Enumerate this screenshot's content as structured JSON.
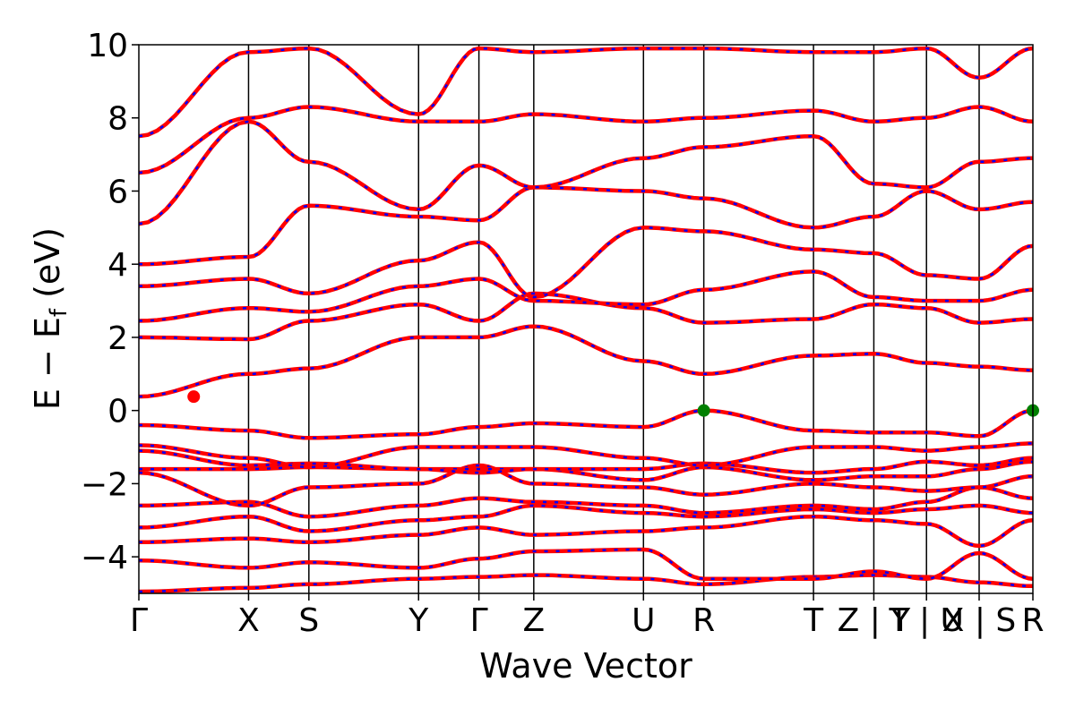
{
  "chart_data": {
    "type": "line",
    "xlabel": "Wave Vector",
    "ylabel": "E − E",
    "ylabel_subscript": "f",
    "ylabel_unit": " (eV)",
    "ylim": [
      -5,
      10
    ],
    "yticks": [
      -4,
      -2,
      0,
      2,
      4,
      6,
      8,
      10
    ],
    "ytick_labels": [
      "−4",
      "−2",
      "0",
      "2",
      "4",
      "6",
      "8",
      "10"
    ],
    "kpath": {
      "positions": [
        0,
        1,
        1.55,
        2.55,
        3.1,
        3.6,
        4.6,
        5.15,
        6.15,
        6.7,
        7.18,
        7.66,
        8.15
      ],
      "labels": [
        "Γ",
        "X",
        "S",
        "Y",
        "Γ",
        "Z",
        "U",
        "R",
        "T",
        "Z | Y",
        "T | U",
        "X | S",
        "R"
      ],
      "xlim": [
        0,
        8.15
      ]
    },
    "line_colors": {
      "band": "#ff0000",
      "overlay": "#0000ff"
    },
    "markers": [
      {
        "name": "CBM",
        "x": 0.5,
        "y": 0.38,
        "color": "#ff0000"
      },
      {
        "name": "VBM",
        "x": 5.15,
        "y": 0.0,
        "color": "#008000"
      },
      {
        "name": "VBM",
        "x": 8.15,
        "y": 0.0,
        "color": "#008000"
      }
    ],
    "bands": [
      [
        -4.95,
        -4.85,
        -4.75,
        -4.6,
        -4.55,
        -4.5,
        -4.6,
        -4.75,
        -4.55,
        -4.5,
        -4.55,
        -4.7,
        -4.8
      ],
      [
        -4.1,
        -4.3,
        -4.15,
        -4.3,
        -4.05,
        -3.85,
        -3.8,
        -4.6,
        -4.6,
        -4.4,
        -4.6,
        -3.9,
        -4.6
      ],
      [
        -3.6,
        -3.5,
        -3.6,
        -3.4,
        -3.2,
        -3.4,
        -3.3,
        -3.2,
        -2.9,
        -3.0,
        -3.1,
        -3.7,
        -3.0
      ],
      [
        -3.2,
        -2.9,
        -3.3,
        -3.0,
        -2.9,
        -2.6,
        -2.8,
        -2.9,
        -2.7,
        -2.8,
        -2.7,
        -2.6,
        -2.8
      ],
      [
        -2.6,
        -2.5,
        -2.9,
        -2.6,
        -2.4,
        -2.5,
        -2.6,
        -2.8,
        -2.6,
        -2.7,
        -2.5,
        -2.1,
        -2.4
      ],
      [
        -1.7,
        -2.6,
        -2.1,
        -2.0,
        -1.5,
        -2.0,
        -2.1,
        -2.3,
        -2.0,
        -2.1,
        -2.2,
        -2.1,
        -1.8
      ],
      [
        -1.6,
        -1.6,
        -1.55,
        -1.6,
        -1.6,
        -1.6,
        -1.9,
        -1.55,
        -1.9,
        -1.8,
        -1.8,
        -1.6,
        -1.4
      ],
      [
        -1.1,
        -1.5,
        -1.45,
        -1.6,
        -1.7,
        -1.6,
        -1.6,
        -1.45,
        -1.7,
        -1.6,
        -1.4,
        -1.5,
        -1.3
      ],
      [
        -0.95,
        -1.3,
        -1.55,
        -1.0,
        -1.0,
        -1.0,
        -1.3,
        -1.5,
        -1.0,
        -1.0,
        -1.1,
        -1.0,
        -0.9
      ],
      [
        -0.4,
        -0.55,
        -0.75,
        -0.65,
        -0.45,
        -0.35,
        -0.45,
        0.0,
        -0.55,
        -0.6,
        -0.6,
        -0.7,
        0.0
      ],
      [
        0.38,
        1.0,
        1.15,
        2.0,
        2.0,
        2.3,
        1.35,
        1.0,
        1.5,
        1.55,
        1.3,
        1.2,
        1.1
      ],
      [
        2.0,
        1.95,
        2.45,
        2.9,
        2.45,
        3.2,
        2.8,
        2.4,
        2.5,
        2.9,
        2.8,
        2.4,
        2.5
      ],
      [
        2.45,
        2.8,
        2.7,
        3.4,
        3.6,
        3.0,
        2.9,
        3.3,
        3.8,
        3.1,
        3.0,
        3.0,
        3.3
      ],
      [
        3.4,
        3.6,
        3.2,
        4.1,
        4.6,
        3.1,
        5.0,
        4.9,
        4.4,
        4.3,
        3.7,
        3.6,
        4.5
      ],
      [
        4.0,
        4.2,
        5.6,
        5.3,
        5.2,
        6.1,
        6.0,
        5.8,
        5.0,
        5.3,
        6.0,
        5.5,
        5.7
      ],
      [
        5.1,
        7.9,
        6.8,
        5.5,
        6.7,
        6.1,
        6.9,
        7.2,
        7.5,
        6.2,
        6.1,
        6.8,
        6.9
      ],
      [
        6.5,
        8.0,
        8.3,
        7.9,
        7.9,
        8.1,
        7.9,
        8.0,
        8.2,
        7.9,
        8.0,
        8.3,
        7.9
      ],
      [
        7.5,
        9.8,
        9.9,
        8.1,
        9.9,
        9.8,
        9.9,
        9.9,
        9.8,
        9.8,
        9.9,
        9.1,
        9.9
      ]
    ]
  }
}
